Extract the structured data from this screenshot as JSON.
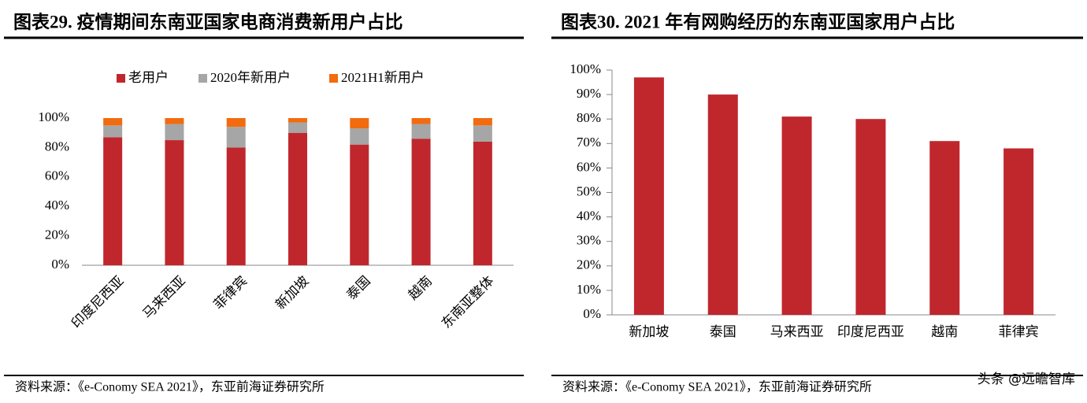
{
  "chart_data": [
    {
      "type": "stacked_bar",
      "title": "图表29. 疫情期间东南亚国家电商消费新用户占比",
      "categories": [
        "印度尼西亚",
        "马来西亚",
        "菲律宾",
        "新加坡",
        "泰国",
        "越南",
        "东南亚整体"
      ],
      "series": [
        {
          "name": "老用户",
          "color": "#c0272d",
          "values": [
            87,
            85,
            80,
            90,
            82,
            86,
            84
          ]
        },
        {
          "name": "2020年新用户",
          "color": "#a6a6a6",
          "values": [
            8,
            11,
            14,
            7,
            11,
            10,
            11
          ]
        },
        {
          "name": "2021H1新用户",
          "color": "#f26b0f",
          "values": [
            5,
            4,
            6,
            3,
            7,
            4,
            5
          ]
        }
      ],
      "ylim": [
        0,
        100
      ],
      "yticks": [
        {
          "value": 0,
          "label": "0%"
        },
        {
          "value": 20,
          "label": "20%"
        },
        {
          "value": 40,
          "label": "40%"
        },
        {
          "value": 60,
          "label": "60%"
        },
        {
          "value": 80,
          "label": "80%"
        },
        {
          "value": 100,
          "label": "100%"
        }
      ],
      "legend": "top",
      "source": "资料来源：《e-Conomy SEA 2021》，东亚前海证券研究所"
    },
    {
      "type": "bar",
      "title": "图表30. 2021 年有网购经历的东南亚国家用户占比",
      "categories": [
        "新加坡",
        "泰国",
        "马来西亚",
        "印度尼西亚",
        "越南",
        "菲律宾"
      ],
      "values": [
        97,
        90,
        81,
        80,
        71,
        68
      ],
      "color": "#c0272d",
      "ylim": [
        0,
        100
      ],
      "yticks": [
        {
          "value": 0,
          "label": "0%"
        },
        {
          "value": 10,
          "label": "10%"
        },
        {
          "value": 20,
          "label": "20%"
        },
        {
          "value": 30,
          "label": "30%"
        },
        {
          "value": 40,
          "label": "40%"
        },
        {
          "value": 50,
          "label": "50%"
        },
        {
          "value": 60,
          "label": "60%"
        },
        {
          "value": 70,
          "label": "70%"
        },
        {
          "value": 80,
          "label": "80%"
        },
        {
          "value": 90,
          "label": "90%"
        },
        {
          "value": 100,
          "label": "100%"
        }
      ],
      "source": "资料来源：《e-Conomy SEA 2021》，东亚前海证券研究所",
      "watermark": "头条 @远瞻智库"
    }
  ]
}
